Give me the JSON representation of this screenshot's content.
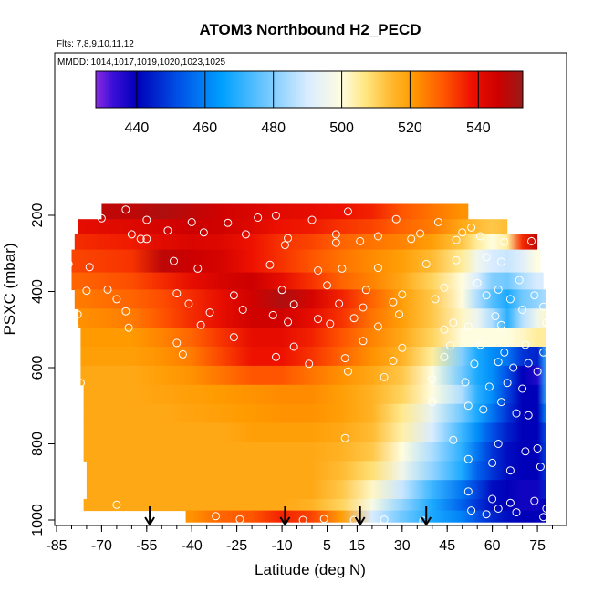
{
  "chart_data": {
    "type": "heatmap",
    "title": "ATOM3 Northbound H2_PECD",
    "subtitle_flights": "Flts: 7,8,9,10,11,12",
    "subtitle_dates": "MMDD: 1014,1017,1019,1020,1023,1025",
    "xlabel": "Latitude (deg N)",
    "ylabel": "PSXC (mbar)",
    "xlim": [
      -85,
      85
    ],
    "ylim": [
      1000,
      100
    ],
    "x_ticks": [
      -85,
      -70,
      -55,
      -40,
      -25,
      -10,
      5,
      15,
      30,
      45,
      60,
      75
    ],
    "x_tick_labels": [
      "-85",
      "-70",
      "-55",
      "-40",
      "-25",
      "-10",
      "5",
      "15",
      "30",
      "45",
      "60",
      "75"
    ],
    "y_ticks": [
      200,
      400,
      600,
      800,
      1000
    ],
    "y_tick_labels": [
      "200",
      "400",
      "600",
      "800",
      "1000"
    ],
    "colorbar": {
      "min": 428,
      "max": 553,
      "ticks": [
        440,
        460,
        480,
        500,
        520,
        540
      ],
      "tick_labels": [
        "440",
        "460",
        "480",
        "500",
        "520",
        "540"
      ],
      "stops": [
        {
          "v": 428,
          "c": "#8a2be2"
        },
        {
          "v": 433,
          "c": "#3b0fd9"
        },
        {
          "v": 440,
          "c": "#0000b8"
        },
        {
          "v": 452,
          "c": "#0050e6"
        },
        {
          "v": 465,
          "c": "#00a0ff"
        },
        {
          "v": 478,
          "c": "#70c8ff"
        },
        {
          "v": 490,
          "c": "#d9ecff"
        },
        {
          "v": 500,
          "c": "#fffde0"
        },
        {
          "v": 507,
          "c": "#ffe680"
        },
        {
          "v": 514,
          "c": "#ffbb33"
        },
        {
          "v": 521,
          "c": "#ff9a00"
        },
        {
          "v": 530,
          "c": "#ff5500"
        },
        {
          "v": 538,
          "c": "#ee1100"
        },
        {
          "v": 546,
          "c": "#cc0000"
        },
        {
          "v": 553,
          "c": "#9a1a1a"
        }
      ]
    },
    "pressure_levels": [
      190,
      230,
      270,
      320,
      370,
      420,
      470,
      520,
      570,
      620,
      670,
      720,
      770,
      820,
      870,
      920,
      960,
      995
    ],
    "arrow_latitudes": [
      -54,
      -9,
      16,
      38
    ],
    "regions": [
      {
        "lat_min": -70,
        "lat_max": 52,
        "p_min": 170,
        "p_max": 210
      },
      {
        "lat_min": -78,
        "lat_max": 65,
        "p_min": 210,
        "p_max": 250
      },
      {
        "lat_min": -79,
        "lat_max": 75,
        "p_min": 250,
        "p_max": 290
      },
      {
        "lat_min": -80,
        "lat_max": 76,
        "p_min": 290,
        "p_max": 350
      },
      {
        "lat_min": -80,
        "lat_max": 77,
        "p_min": 350,
        "p_max": 395
      },
      {
        "lat_min": -79,
        "lat_max": 78,
        "p_min": 395,
        "p_max": 445
      },
      {
        "lat_min": -78,
        "lat_max": 78,
        "p_min": 445,
        "p_max": 495
      },
      {
        "lat_min": -77,
        "lat_max": 78,
        "p_min": 495,
        "p_max": 545
      },
      {
        "lat_min": -77,
        "lat_max": 78,
        "p_min": 545,
        "p_max": 595
      },
      {
        "lat_min": -77,
        "lat_max": 78,
        "p_min": 595,
        "p_max": 645
      },
      {
        "lat_min": -76,
        "lat_max": 78,
        "p_min": 645,
        "p_max": 695
      },
      {
        "lat_min": -76,
        "lat_max": 78,
        "p_min": 695,
        "p_max": 745
      },
      {
        "lat_min": -76,
        "lat_max": 78,
        "p_min": 745,
        "p_max": 795
      },
      {
        "lat_min": -76,
        "lat_max": 78,
        "p_min": 795,
        "p_max": 845
      },
      {
        "lat_min": -75,
        "lat_max": 78,
        "p_min": 845,
        "p_max": 895
      },
      {
        "lat_min": -75,
        "lat_max": 78,
        "p_min": 895,
        "p_max": 945
      },
      {
        "lat_min": -76,
        "lat_max": 78,
        "p_min": 945,
        "p_max": 975
      },
      {
        "lat_min": -42,
        "lat_max": 78,
        "p_min": 975,
        "p_max": 1005
      }
    ],
    "profile_lat": [
      -78,
      -60,
      -50,
      -40,
      -30,
      -20,
      -10,
      0,
      10,
      20,
      30,
      40,
      50,
      55,
      60,
      65,
      70,
      75,
      78
    ],
    "profile_values": [
      [
        546,
        548,
        550,
        548,
        545,
        543,
        541,
        540,
        538,
        536,
        530,
        526,
        522,
        522,
        522,
        522,
        522,
        522,
        522
      ],
      [
        540,
        542,
        544,
        546,
        545,
        542,
        538,
        537,
        534,
        532,
        528,
        525,
        518,
        514,
        512,
        514,
        520,
        520,
        520
      ],
      [
        535,
        537,
        541,
        543,
        542,
        538,
        534,
        532,
        528,
        526,
        524,
        520,
        512,
        505,
        500,
        505,
        535,
        548,
        548
      ],
      [
        532,
        534,
        548,
        546,
        544,
        538,
        534,
        530,
        526,
        523,
        520,
        514,
        505,
        496,
        490,
        488,
        492,
        500,
        505
      ],
      [
        528,
        531,
        535,
        540,
        544,
        546,
        540,
        534,
        528,
        524,
        518,
        510,
        500,
        490,
        480,
        478,
        485,
        490,
        490
      ],
      [
        525,
        528,
        531,
        535,
        540,
        545,
        550,
        544,
        536,
        528,
        520,
        512,
        500,
        485,
        475,
        468,
        478,
        482,
        485
      ],
      [
        522,
        525,
        530,
        535,
        540,
        545,
        545,
        540,
        534,
        526,
        520,
        512,
        502,
        495,
        485,
        470,
        486,
        496,
        502
      ],
      [
        520,
        521,
        524,
        528,
        534,
        540,
        540,
        536,
        530,
        524,
        518,
        510,
        500,
        500,
        500,
        500,
        502,
        505,
        505
      ],
      [
        519,
        520,
        522,
        525,
        532,
        538,
        538,
        534,
        528,
        522,
        516,
        505,
        480,
        468,
        462,
        458,
        448,
        445,
        470
      ],
      [
        518,
        518,
        520,
        522,
        526,
        530,
        530,
        526,
        522,
        518,
        512,
        500,
        478,
        468,
        462,
        452,
        440,
        436,
        470
      ],
      [
        518,
        518,
        519,
        520,
        521,
        522,
        523,
        523,
        520,
        516,
        510,
        500,
        485,
        470,
        462,
        450,
        440,
        440,
        470
      ],
      [
        518,
        518,
        518,
        519,
        520,
        521,
        522,
        522,
        520,
        516,
        506,
        494,
        478,
        468,
        458,
        448,
        440,
        440,
        462
      ],
      [
        518,
        518,
        518,
        518,
        518,
        520,
        520,
        520,
        518,
        514,
        504,
        490,
        472,
        462,
        452,
        445,
        440,
        440,
        452
      ],
      [
        518,
        518,
        518,
        518,
        518,
        518,
        518,
        518,
        516,
        512,
        500,
        485,
        470,
        458,
        448,
        442,
        440,
        440,
        450
      ],
      [
        518,
        518,
        518,
        518,
        518,
        518,
        518,
        518,
        514,
        508,
        496,
        482,
        468,
        455,
        448,
        442,
        440,
        440,
        448
      ],
      [
        518,
        518,
        518,
        518,
        518,
        518,
        518,
        518,
        512,
        502,
        488,
        472,
        458,
        450,
        442,
        440,
        438,
        438,
        445
      ],
      [
        518,
        518,
        518,
        518,
        518,
        518,
        518,
        516,
        510,
        498,
        482,
        468,
        455,
        448,
        442,
        440,
        438,
        438,
        440
      ],
      [
        518,
        518,
        518,
        522,
        528,
        530,
        536,
        532,
        520,
        490,
        478,
        468,
        460,
        452,
        446,
        442,
        440,
        440,
        440
      ]
    ],
    "sample_points": [
      [
        -62,
        185
      ],
      [
        -70,
        208
      ],
      [
        -55,
        212
      ],
      [
        -40,
        218
      ],
      [
        -28,
        220
      ],
      [
        -18,
        206
      ],
      [
        -12,
        201
      ],
      [
        0,
        212
      ],
      [
        12,
        190
      ],
      [
        28,
        210
      ],
      [
        42,
        218
      ],
      [
        -80,
        220
      ],
      [
        -60,
        250
      ],
      [
        -48,
        240
      ],
      [
        -36,
        245
      ],
      [
        -22,
        250
      ],
      [
        -8,
        260
      ],
      [
        8,
        250
      ],
      [
        22,
        255
      ],
      [
        36,
        248
      ],
      [
        50,
        245
      ],
      [
        53,
        232
      ],
      [
        -57,
        262
      ],
      [
        -55,
        262
      ],
      [
        -9,
        278
      ],
      [
        8,
        272
      ],
      [
        16,
        268
      ],
      [
        33,
        262
      ],
      [
        48,
        265
      ],
      [
        56,
        255
      ],
      [
        64,
        270
      ],
      [
        73,
        268
      ],
      [
        -81,
        328
      ],
      [
        -74,
        336
      ],
      [
        -46,
        320
      ],
      [
        -38,
        340
      ],
      [
        -14,
        330
      ],
      [
        2,
        345
      ],
      [
        10,
        340
      ],
      [
        22,
        338
      ],
      [
        38,
        328
      ],
      [
        48,
        318
      ],
      [
        58,
        310
      ],
      [
        63,
        322
      ],
      [
        -75,
        398
      ],
      [
        -68,
        395
      ],
      [
        -45,
        405
      ],
      [
        -26,
        410
      ],
      [
        -10,
        396
      ],
      [
        5,
        384
      ],
      [
        18,
        396
      ],
      [
        30,
        408
      ],
      [
        44,
        390
      ],
      [
        55,
        378
      ],
      [
        62,
        395
      ],
      [
        69,
        370
      ],
      [
        -65,
        420
      ],
      [
        -41,
        432
      ],
      [
        -23,
        448
      ],
      [
        -6,
        434
      ],
      [
        9,
        432
      ],
      [
        17,
        442
      ],
      [
        27,
        428
      ],
      [
        41,
        420
      ],
      [
        58,
        410
      ],
      [
        66,
        420
      ],
      [
        74,
        410
      ],
      [
        -78,
        460
      ],
      [
        -62,
        452
      ],
      [
        -34,
        455
      ],
      [
        -13,
        462
      ],
      [
        2,
        472
      ],
      [
        14,
        470
      ],
      [
        29,
        460
      ],
      [
        47,
        482
      ],
      [
        61,
        465
      ],
      [
        70,
        448
      ],
      [
        77,
        440
      ],
      [
        -79,
        490
      ],
      [
        -61,
        495
      ],
      [
        -37,
        488
      ],
      [
        -8,
        480
      ],
      [
        6,
        485
      ],
      [
        22,
        492
      ],
      [
        44,
        500
      ],
      [
        52,
        492
      ],
      [
        63,
        488
      ],
      [
        78,
        482
      ],
      [
        -45,
        535
      ],
      [
        -26,
        520
      ],
      [
        -6,
        545
      ],
      [
        17,
        530
      ],
      [
        30,
        548
      ],
      [
        46,
        542
      ],
      [
        56,
        540
      ],
      [
        64,
        560
      ],
      [
        71,
        540
      ],
      [
        77,
        560
      ],
      [
        -43,
        565
      ],
      [
        -12,
        572
      ],
      [
        11,
        575
      ],
      [
        27,
        582
      ],
      [
        44,
        572
      ],
      [
        54,
        590
      ],
      [
        62,
        585
      ],
      [
        67,
        600
      ],
      [
        72,
        588
      ],
      [
        75,
        610
      ],
      [
        -1,
        590
      ],
      [
        12,
        610
      ],
      [
        24,
        625
      ],
      [
        40,
        630
      ],
      [
        51,
        638
      ],
      [
        59,
        650
      ],
      [
        65,
        640
      ],
      [
        70,
        655
      ],
      [
        -77,
        640
      ],
      [
        40,
        690
      ],
      [
        52,
        700
      ],
      [
        57,
        710
      ],
      [
        63,
        690
      ],
      [
        68,
        720
      ],
      [
        72,
        725
      ],
      [
        11,
        785
      ],
      [
        47,
        790
      ],
      [
        62,
        800
      ],
      [
        71,
        820
      ],
      [
        75,
        812
      ],
      [
        52,
        840
      ],
      [
        60,
        850
      ],
      [
        66,
        870
      ],
      [
        76,
        860
      ],
      [
        -78,
        955
      ],
      [
        -65,
        960
      ],
      [
        52,
        925
      ],
      [
        60,
        945
      ],
      [
        66,
        955
      ],
      [
        74,
        950
      ],
      [
        78,
        970
      ],
      [
        -32,
        990
      ],
      [
        -24,
        998
      ],
      [
        -3,
        1000
      ],
      [
        4,
        997
      ],
      [
        14,
        1000
      ],
      [
        24,
        999
      ],
      [
        37,
        1002
      ],
      [
        53,
        975
      ],
      [
        58,
        985
      ],
      [
        62,
        970
      ],
      [
        68,
        980
      ],
      [
        77,
        992
      ]
    ]
  }
}
